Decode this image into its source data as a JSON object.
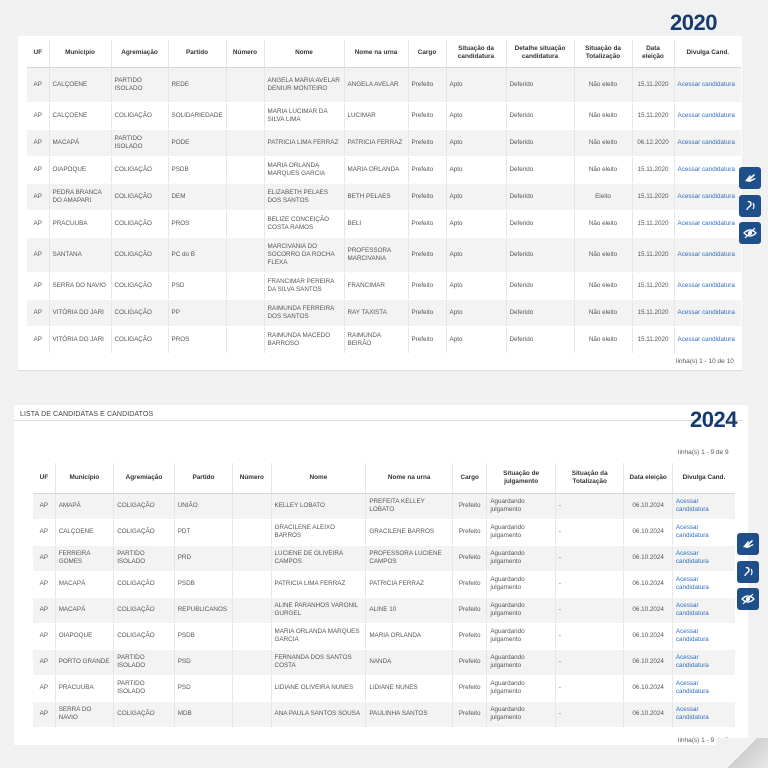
{
  "section2020": {
    "year": "2020",
    "headers": [
      "UF",
      "Município",
      "Agremiação",
      "Partido",
      "Número",
      "Nome",
      "Nome na urna",
      "Cargo",
      "Situação da candidatura",
      "Detalhe situação candidatura",
      "Situação da Totalização",
      "Data eleição",
      "Divulga Cand."
    ],
    "rows": [
      [
        "AP",
        "CALÇOENE",
        "PARTIDO ISOLADO",
        "REDE",
        "",
        "ANGELA MARIA AVELAR DENIUR MONTEIRO",
        "ANGELA AVELAR",
        "Prefeito",
        "Apto",
        "Deferido",
        "Não eleito",
        "15.11.2020",
        "Acessar candidatura"
      ],
      [
        "AP",
        "CALÇOENE",
        "COLIGAÇÃO",
        "SOLIDARIEDADE",
        "",
        "MARIA LUCIMAR DA SILVA LIMA",
        "LUCIMAR",
        "Prefeito",
        "Apto",
        "Deferido",
        "Não eleito",
        "15.11.2020",
        "Acessar candidatura"
      ],
      [
        "AP",
        "MACAPÁ",
        "PARTIDO ISOLADO",
        "PODE",
        "",
        "PATRICIA LIMA FERRAZ",
        "PATRICIA FERRAZ",
        "Prefeito",
        "Apto",
        "Deferido",
        "Não eleito",
        "06.12.2020",
        "Acessar candidatura"
      ],
      [
        "AP",
        "OIAPOQUE",
        "COLIGAÇÃO",
        "PSDB",
        "",
        "MARIA ORLANDA MARQUES GARCIA",
        "MARIA ORLANDA",
        "Prefeito",
        "Apto",
        "Deferido",
        "Não eleito",
        "15.11.2020",
        "Acessar candidatura"
      ],
      [
        "AP",
        "PEDRA BRANCA DO AMAPARI",
        "COLIGAÇÃO",
        "DEM",
        "",
        "ELIZABETH PELAES DOS SANTOS",
        "BETH PELAES",
        "Prefeito",
        "Apto",
        "Deferido",
        "Eleito",
        "15.11.2020",
        "Acessar candidatura"
      ],
      [
        "AP",
        "PRACUUBA",
        "COLIGAÇÃO",
        "PROS",
        "",
        "BELIZE CONCEIÇÃO COSTA RAMOS",
        "BELI",
        "Prefeito",
        "Apto",
        "Deferido",
        "Não eleito",
        "15.11.2020",
        "Acessar candidatura"
      ],
      [
        "AP",
        "SANTANA",
        "COLIGAÇÃO",
        "PC do B",
        "",
        "MARCIVANIA DO SOCORRO DA ROCHA FLEXA",
        "PROFESSORA MARCIVANIA",
        "Prefeito",
        "Apto",
        "Deferido",
        "Não eleito",
        "15.11.2020",
        "Acessar candidatura"
      ],
      [
        "AP",
        "SERRA DO NAVIO",
        "COLIGAÇÃO",
        "PSD",
        "",
        "FRANCIMAR PEREIRA DA SILVA SANTOS",
        "FRANCIMAR",
        "Prefeito",
        "Apto",
        "Deferido",
        "Não eleito",
        "15.11.2020",
        "Acessar candidatura"
      ],
      [
        "AP",
        "VITÓRIA DO JARI",
        "COLIGAÇÃO",
        "PP",
        "",
        "RAIMUNDA FERREIRA DOS SANTOS",
        "RAY TAXISTA",
        "Prefeito",
        "Apto",
        "Deferido",
        "Não eleito",
        "15.11.2020",
        "Acessar candidatura"
      ],
      [
        "AP",
        "VITÓRIA DO JARI",
        "COLIGAÇÃO",
        "PROS",
        "",
        "RAIMUNDA MACEDO BARROSO",
        "RAIMUNDA BEIRÃO",
        "Prefeito",
        "Apto",
        "Deferido",
        "Não eleito",
        "15.11.2020",
        "Acessar candidatura"
      ]
    ],
    "counter": "linha(s) 1 - 10 de 10"
  },
  "section2024": {
    "list_title": "LISTA DE CANDIDATAS E CANDIDATOS",
    "year": "2024",
    "counter_top": "linha(s) 1 - 9 de 9",
    "counter_bottom": "linha(s) 1 - 9 de 9",
    "headers": [
      "UF",
      "Município",
      "Agremiação",
      "Partido",
      "Número",
      "Nome",
      "Nome na urna",
      "Cargo",
      "Situação de julgamento",
      "Situação da Totalização",
      "Data eleição",
      "Divulga Cand."
    ],
    "rows": [
      [
        "AP",
        "AMAPÁ",
        "COLIGAÇÃO",
        "UNIÃO",
        "",
        "KELLEY LOBATO",
        "PREFEITA KELLEY LOBATO",
        "Prefeito",
        "Aguardando julgamento",
        "-",
        "06.10.2024",
        "Acessar candidatura"
      ],
      [
        "AP",
        "CALÇOENE",
        "COLIGAÇÃO",
        "PDT",
        "",
        "GRACILENE ALEIXO BARROS",
        "GRACILENE BARROS",
        "Prefeito",
        "Aguardando julgamento",
        "-",
        "06.10.2024",
        "Acessar candidatura"
      ],
      [
        "AP",
        "FERREIRA GOMES",
        "PARTIDO ISOLADO",
        "PRD",
        "",
        "LUCIENE DE OLIVEIRA CAMPOS",
        "PROFESSORA LUCIENE CAMPOS",
        "Prefeito",
        "Aguardando julgamento",
        "-",
        "06.10.2024",
        "Acessar candidatura"
      ],
      [
        "AP",
        "MACAPÁ",
        "COLIGAÇÃO",
        "PSDB",
        "",
        "PATRICIA LIMA FERRAZ",
        "PATRICIA FERRAZ",
        "Prefeito",
        "Aguardando julgamento",
        "-",
        "06.10.2024",
        "Acessar candidatura"
      ],
      [
        "AP",
        "MACAPÁ",
        "COLIGAÇÃO",
        "REPUBLICANOS",
        "",
        "ALINE PARANHOS VARONIL GURGEL",
        "ALINE 10",
        "Prefeito",
        "Aguardando julgamento",
        "-",
        "06.10.2024",
        "Acessar candidatura"
      ],
      [
        "AP",
        "OIAPOQUE",
        "COLIGAÇÃO",
        "PSDB",
        "",
        "MARIA ORLANDA MARQUES GARCIA",
        "MARIA ORLANDA",
        "Prefeito",
        "Aguardando julgamento",
        "-",
        "06.10.2024",
        "Acessar candidatura"
      ],
      [
        "AP",
        "PORTO GRANDE",
        "PARTIDO ISOLADO",
        "PSD",
        "",
        "FERNANDA DOS SANTOS COSTA",
        "NANDA",
        "Prefeito",
        "Aguardando julgamento",
        "-",
        "06.10.2024",
        "Acessar candidatura"
      ],
      [
        "AP",
        "PRACUUBA",
        "PARTIDO ISOLADO",
        "PSD",
        "",
        "LIDIANE OLIVEIRA NUNES",
        "LIDIANE NUNES",
        "Prefeito",
        "Aguardando julgamento",
        "-",
        "06.10.2024",
        "Acessar candidatura"
      ],
      [
        "AP",
        "SERRA DO NAVIO",
        "COLIGAÇÃO",
        "MDB",
        "",
        "ANA PAULA SANTOS SOUSA",
        "PAULINHA SANTOS",
        "Prefeito",
        "Aguardando julgamento",
        "-",
        "06.10.2024",
        "Acessar candidatura"
      ]
    ]
  },
  "accessibility": [
    "sign-language-icon",
    "hearing-icon",
    "eye-icon"
  ],
  "colors": {
    "year": "#163a6e",
    "link": "#2d6fbf",
    "access_bg": "#1f4f8a"
  }
}
